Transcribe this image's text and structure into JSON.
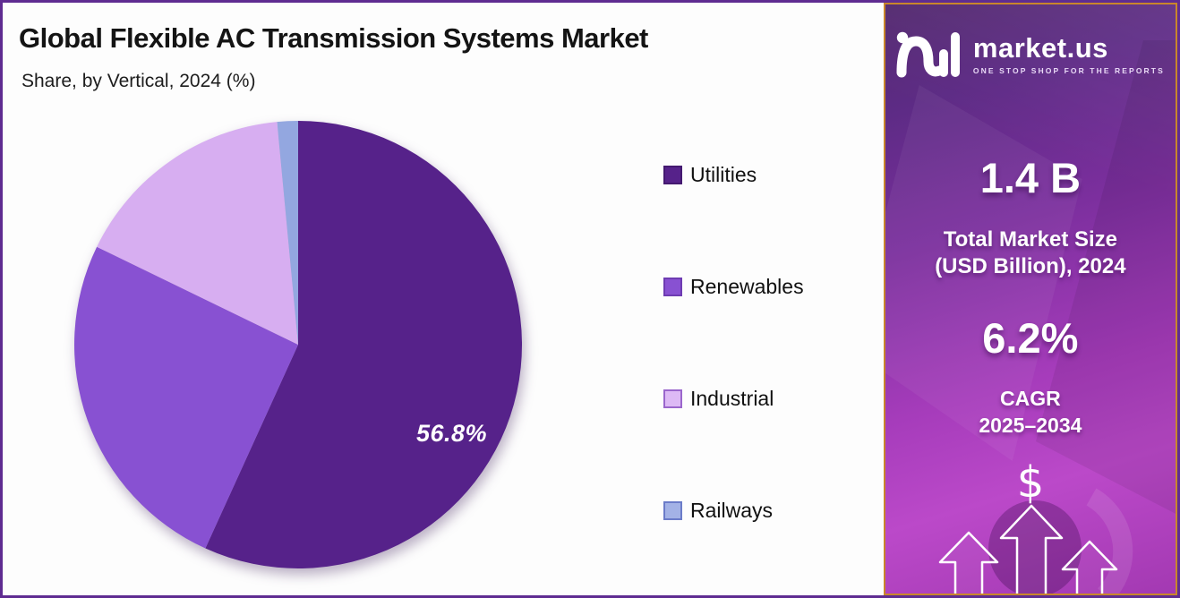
{
  "header": {
    "title": "Global Flexible AC Transmission Systems Market",
    "subtitle": "Share, by Vertical, 2024 (%)"
  },
  "chart_data": {
    "type": "pie",
    "title": "Global Flexible AC Transmission Systems Market Share, by Vertical, 2024 (%)",
    "categories": [
      "Utilities",
      "Renewables",
      "Industrial",
      "Railways"
    ],
    "values": [
      56.8,
      25.4,
      16.3,
      1.5
    ],
    "unit": "%",
    "colors": [
      "#56228a",
      "#8851d2",
      "#d7aef1",
      "#93a7e0"
    ],
    "start_angle_deg": 0,
    "direction": "clockwise",
    "legend_position": "right",
    "labels_shown": [
      {
        "category": "Utilities",
        "text": "56.8%"
      }
    ]
  },
  "legend": {
    "swatch_fills": [
      "#56228a",
      "#8851d2",
      "#ddb9f5",
      "#a3b2e6"
    ],
    "swatch_borders": [
      "#441970",
      "#6e3cb2",
      "#9a66cc",
      "#6b7cc9"
    ]
  },
  "sidebar": {
    "logo_name": "market.us",
    "logo_tagline": "ONE STOP SHOP FOR THE REPORTS",
    "stat1_value": "1.4 B",
    "stat1_caption_line1": "Total Market Size",
    "stat1_caption_line2": "(USD Billion), 2024",
    "stat2_value": "6.2%",
    "stat2_caption_line1": "CAGR",
    "stat2_caption_line2": "2025–2034",
    "currency_symbol": "$",
    "accent_border_color": "#c9862b",
    "frame_border_color": "#5f2c91",
    "gradient_top_color": "#5d2b85",
    "gradient_bottom_color": "#b444c4"
  }
}
